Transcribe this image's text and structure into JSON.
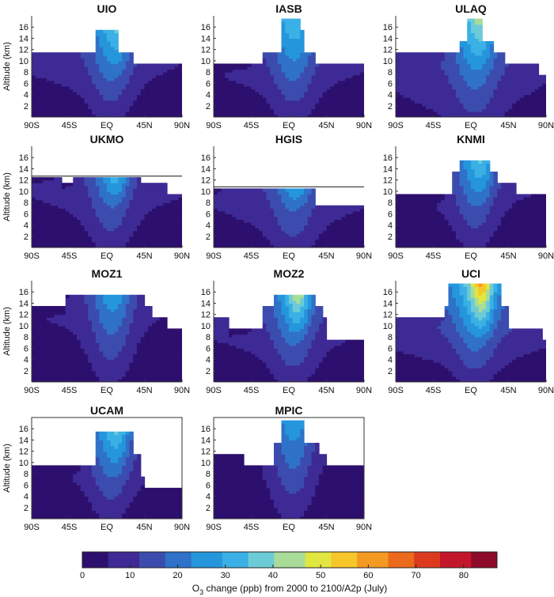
{
  "chart_data": {
    "type": "heatmap",
    "colorbar": {
      "ticks": [
        0,
        10,
        20,
        30,
        40,
        50,
        60,
        70,
        80
      ],
      "range": [
        0,
        87
      ],
      "label_pre": "O",
      "label_sub": "3",
      "label_post": " change (ppb) from 2000 to 2100/A2p (July)",
      "colors": [
        "#2d0f6e",
        "#3e2a94",
        "#3c4cae",
        "#2f72c8",
        "#2596dc",
        "#3ab0e6",
        "#6ccbd6",
        "#a8dc98",
        "#e2e640",
        "#f7c62a",
        "#f49a22",
        "#ec6a1c",
        "#dc3a1e",
        "#c4162a",
        "#8e0a2a"
      ]
    },
    "xticks": [
      "90S",
      "45S",
      "EQ",
      "45N",
      "90N"
    ],
    "yticks": [
      "2",
      "4",
      "6",
      "8",
      "10",
      "12",
      "14",
      "16"
    ],
    "ylabel": "Altitude (km)",
    "panels": [
      {
        "title": "UIO",
        "boxed": false,
        "lid": null,
        "lower": 3,
        "upper": 12,
        "jet": 0.25,
        "jetw": 16,
        "hot": 60,
        "coldN": 0.8,
        "top": [
          [
            -90,
            11.5
          ],
          [
            -60,
            11.5
          ],
          [
            -15,
            11.5
          ],
          [
            -12,
            15.5
          ],
          [
            12,
            15.5
          ],
          [
            15,
            11.5
          ],
          [
            25,
            11.5
          ],
          [
            30,
            9.5
          ],
          [
            90,
            9.5
          ]
        ]
      },
      {
        "title": "IASB",
        "boxed": false,
        "lid": null,
        "lower": 3,
        "upper": 12,
        "jet": 0.15,
        "jetw": 14,
        "hot": 42,
        "coldN": 0.5,
        "top": [
          [
            -90,
            9.5
          ],
          [
            -40,
            9.5
          ],
          [
            -30,
            11.5
          ],
          [
            -12,
            11.5
          ],
          [
            -10,
            17.5
          ],
          [
            10,
            17.5
          ],
          [
            12,
            15.5
          ],
          [
            18,
            11.5
          ],
          [
            30,
            9.5
          ],
          [
            90,
            9.5
          ]
        ]
      },
      {
        "title": "ULAQ",
        "boxed": false,
        "lid": null,
        "lower": 6,
        "upper": 14,
        "jet": 0.25,
        "jetw": 12,
        "hot": 58,
        "coldN": 0.6,
        "top": [
          [
            -90,
            11.5
          ],
          [
            -30,
            11.5
          ],
          [
            -15,
            13.5
          ],
          [
            -5,
            17.5
          ],
          [
            10,
            17.5
          ],
          [
            15,
            13.5
          ],
          [
            25,
            11.5
          ],
          [
            40,
            9.5
          ],
          [
            80,
            9.5
          ],
          [
            82,
            7.5
          ],
          [
            90,
            7.5
          ]
        ]
      },
      {
        "title": "UKMO",
        "boxed": false,
        "lid": 12.7,
        "lower": 3,
        "upper": 10,
        "jet": 0.5,
        "jetw": 12,
        "hot": 55,
        "coldN": 0.4,
        "top": [
          [
            -90,
            12.5
          ],
          [
            -55,
            12.5
          ],
          [
            -55,
            11.5
          ],
          [
            -40,
            11.5
          ],
          [
            -40,
            12.5
          ],
          [
            40,
            12.5
          ],
          [
            40,
            11.5
          ],
          [
            70,
            11.5
          ],
          [
            70,
            9.5
          ],
          [
            90,
            9.5
          ]
        ]
      },
      {
        "title": "HGIS",
        "boxed": false,
        "lid": 10.8,
        "lower": 4,
        "upper": 12,
        "jet": 0.45,
        "jetw": 12,
        "hot": 60,
        "coldN": 0.4,
        "top": [
          [
            -90,
            10.5
          ],
          [
            30,
            10.5
          ],
          [
            32,
            7.5
          ],
          [
            90,
            7.5
          ]
        ]
      },
      {
        "title": "KNMI",
        "boxed": false,
        "lid": null,
        "lower": 2,
        "upper": 10,
        "jet": 0.35,
        "jetw": 14,
        "hot": 56,
        "coldN": 0.6,
        "top": [
          [
            -90,
            9.5
          ],
          [
            -30,
            9.5
          ],
          [
            -22,
            13.5
          ],
          [
            -15,
            15.5
          ],
          [
            15,
            15.5
          ],
          [
            22,
            13.5
          ],
          [
            30,
            11.5
          ],
          [
            55,
            9.5
          ],
          [
            90,
            9.5
          ]
        ]
      },
      {
        "title": "MOZ1",
        "boxed": false,
        "lid": null,
        "lower": 2,
        "upper": 8,
        "jet": 0.15,
        "jetw": 16,
        "hot": 45,
        "coldN": 0.7,
        "top": [
          [
            -90,
            13.5
          ],
          [
            -60,
            13.5
          ],
          [
            -50,
            15.5
          ],
          [
            35,
            15.5
          ],
          [
            45,
            13.5
          ],
          [
            55,
            11.5
          ],
          [
            70,
            9.5
          ],
          [
            88,
            9.5
          ],
          [
            90,
            7.5
          ]
        ]
      },
      {
        "title": "MOZ2",
        "boxed": false,
        "lid": null,
        "lower": 3,
        "upper": 12,
        "jet": 0.3,
        "jetw": 12,
        "hot": 78,
        "coldN": 0.6,
        "top": [
          [
            -90,
            11.5
          ],
          [
            -75,
            11.5
          ],
          [
            -70,
            9.5
          ],
          [
            -40,
            9.5
          ],
          [
            -30,
            13.5
          ],
          [
            -20,
            15.5
          ],
          [
            20,
            15.5
          ],
          [
            30,
            13.5
          ],
          [
            40,
            11.5
          ],
          [
            45,
            7.5
          ],
          [
            90,
            7.5
          ]
        ]
      },
      {
        "title": "UCI",
        "boxed": false,
        "lid": null,
        "lower": 3,
        "upper": 16,
        "jet": 0.35,
        "jetw": 14,
        "hot": 80,
        "coldN": 0.5,
        "top": [
          [
            -90,
            11.5
          ],
          [
            -50,
            11.5
          ],
          [
            -30,
            13.5
          ],
          [
            -25,
            17.5
          ],
          [
            30,
            17.5
          ],
          [
            35,
            13.5
          ],
          [
            45,
            9.5
          ],
          [
            85,
            9.5
          ],
          [
            87,
            7.5
          ],
          [
            90,
            7.5
          ]
        ]
      },
      {
        "title": "UCAM",
        "boxed": true,
        "lid": null,
        "lower": 2,
        "upper": 10,
        "jet": 0.3,
        "jetw": 14,
        "hot": 58,
        "coldN": 0.5,
        "top": [
          [
            -90,
            9.5
          ],
          [
            -30,
            9.5
          ],
          [
            -15,
            15.5
          ],
          [
            15,
            15.5
          ],
          [
            30,
            11.5
          ],
          [
            40,
            7.5
          ],
          [
            45,
            5.5
          ],
          [
            90,
            5.5
          ]
        ]
      },
      {
        "title": "MPIC",
        "boxed": true,
        "lid": null,
        "lower": 2,
        "upper": 7,
        "jet": 0.05,
        "jetw": 14,
        "hot": 38,
        "coldN": 0.9,
        "top": [
          [
            -90,
            11.5
          ],
          [
            -60,
            11.5
          ],
          [
            -55,
            9.5
          ],
          [
            -30,
            9.5
          ],
          [
            -20,
            13.5
          ],
          [
            -10,
            17.5
          ],
          [
            10,
            17.5
          ],
          [
            20,
            13.5
          ],
          [
            35,
            11.5
          ],
          [
            45,
            9.5
          ],
          [
            90,
            9.5
          ]
        ]
      }
    ]
  }
}
